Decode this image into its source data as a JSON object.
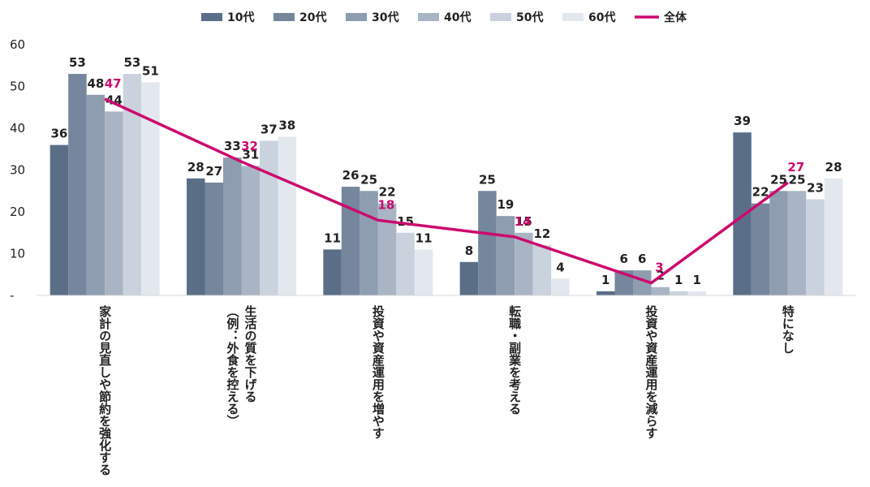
{
  "chart_data": {
    "type": "bar",
    "categories": [
      [
        "家計の見直しや節約を強化する"
      ],
      [
        "生活の質を下げる",
        "（例：外食を控える）"
      ],
      [
        "投資や資産運用を増やす"
      ],
      [
        "転職・副業を考える"
      ],
      [
        "投資や資産運用を減らす"
      ],
      [
        "特になし"
      ]
    ],
    "series": [
      {
        "name": "10代",
        "color": "#5b6e88",
        "values": [
          36,
          28,
          11,
          8,
          1,
          39
        ]
      },
      {
        "name": "20代",
        "color": "#75869d",
        "values": [
          53,
          27,
          26,
          25,
          6,
          22
        ]
      },
      {
        "name": "30代",
        "color": "#8e9db0",
        "values": [
          48,
          33,
          25,
          19,
          6,
          25
        ]
      },
      {
        "name": "40代",
        "color": "#a9b5c4",
        "values": [
          44,
          31,
          22,
          15,
          2,
          25
        ]
      },
      {
        "name": "50代",
        "color": "#c9d2dd",
        "values": [
          53,
          37,
          15,
          12,
          1,
          23
        ]
      },
      {
        "name": "60代",
        "color": "#e3e8ef",
        "values": [
          51,
          38,
          11,
          4,
          1,
          28
        ]
      }
    ],
    "line": {
      "name": "全体",
      "color": "#cc0a6e",
      "values": [
        47,
        32,
        18,
        14,
        3,
        27
      ]
    },
    "ylim": [
      0,
      60
    ],
    "yticks": [
      "-",
      "10",
      "20",
      "30",
      "40",
      "50",
      "60"
    ],
    "legend_position": "top",
    "grid": false
  }
}
